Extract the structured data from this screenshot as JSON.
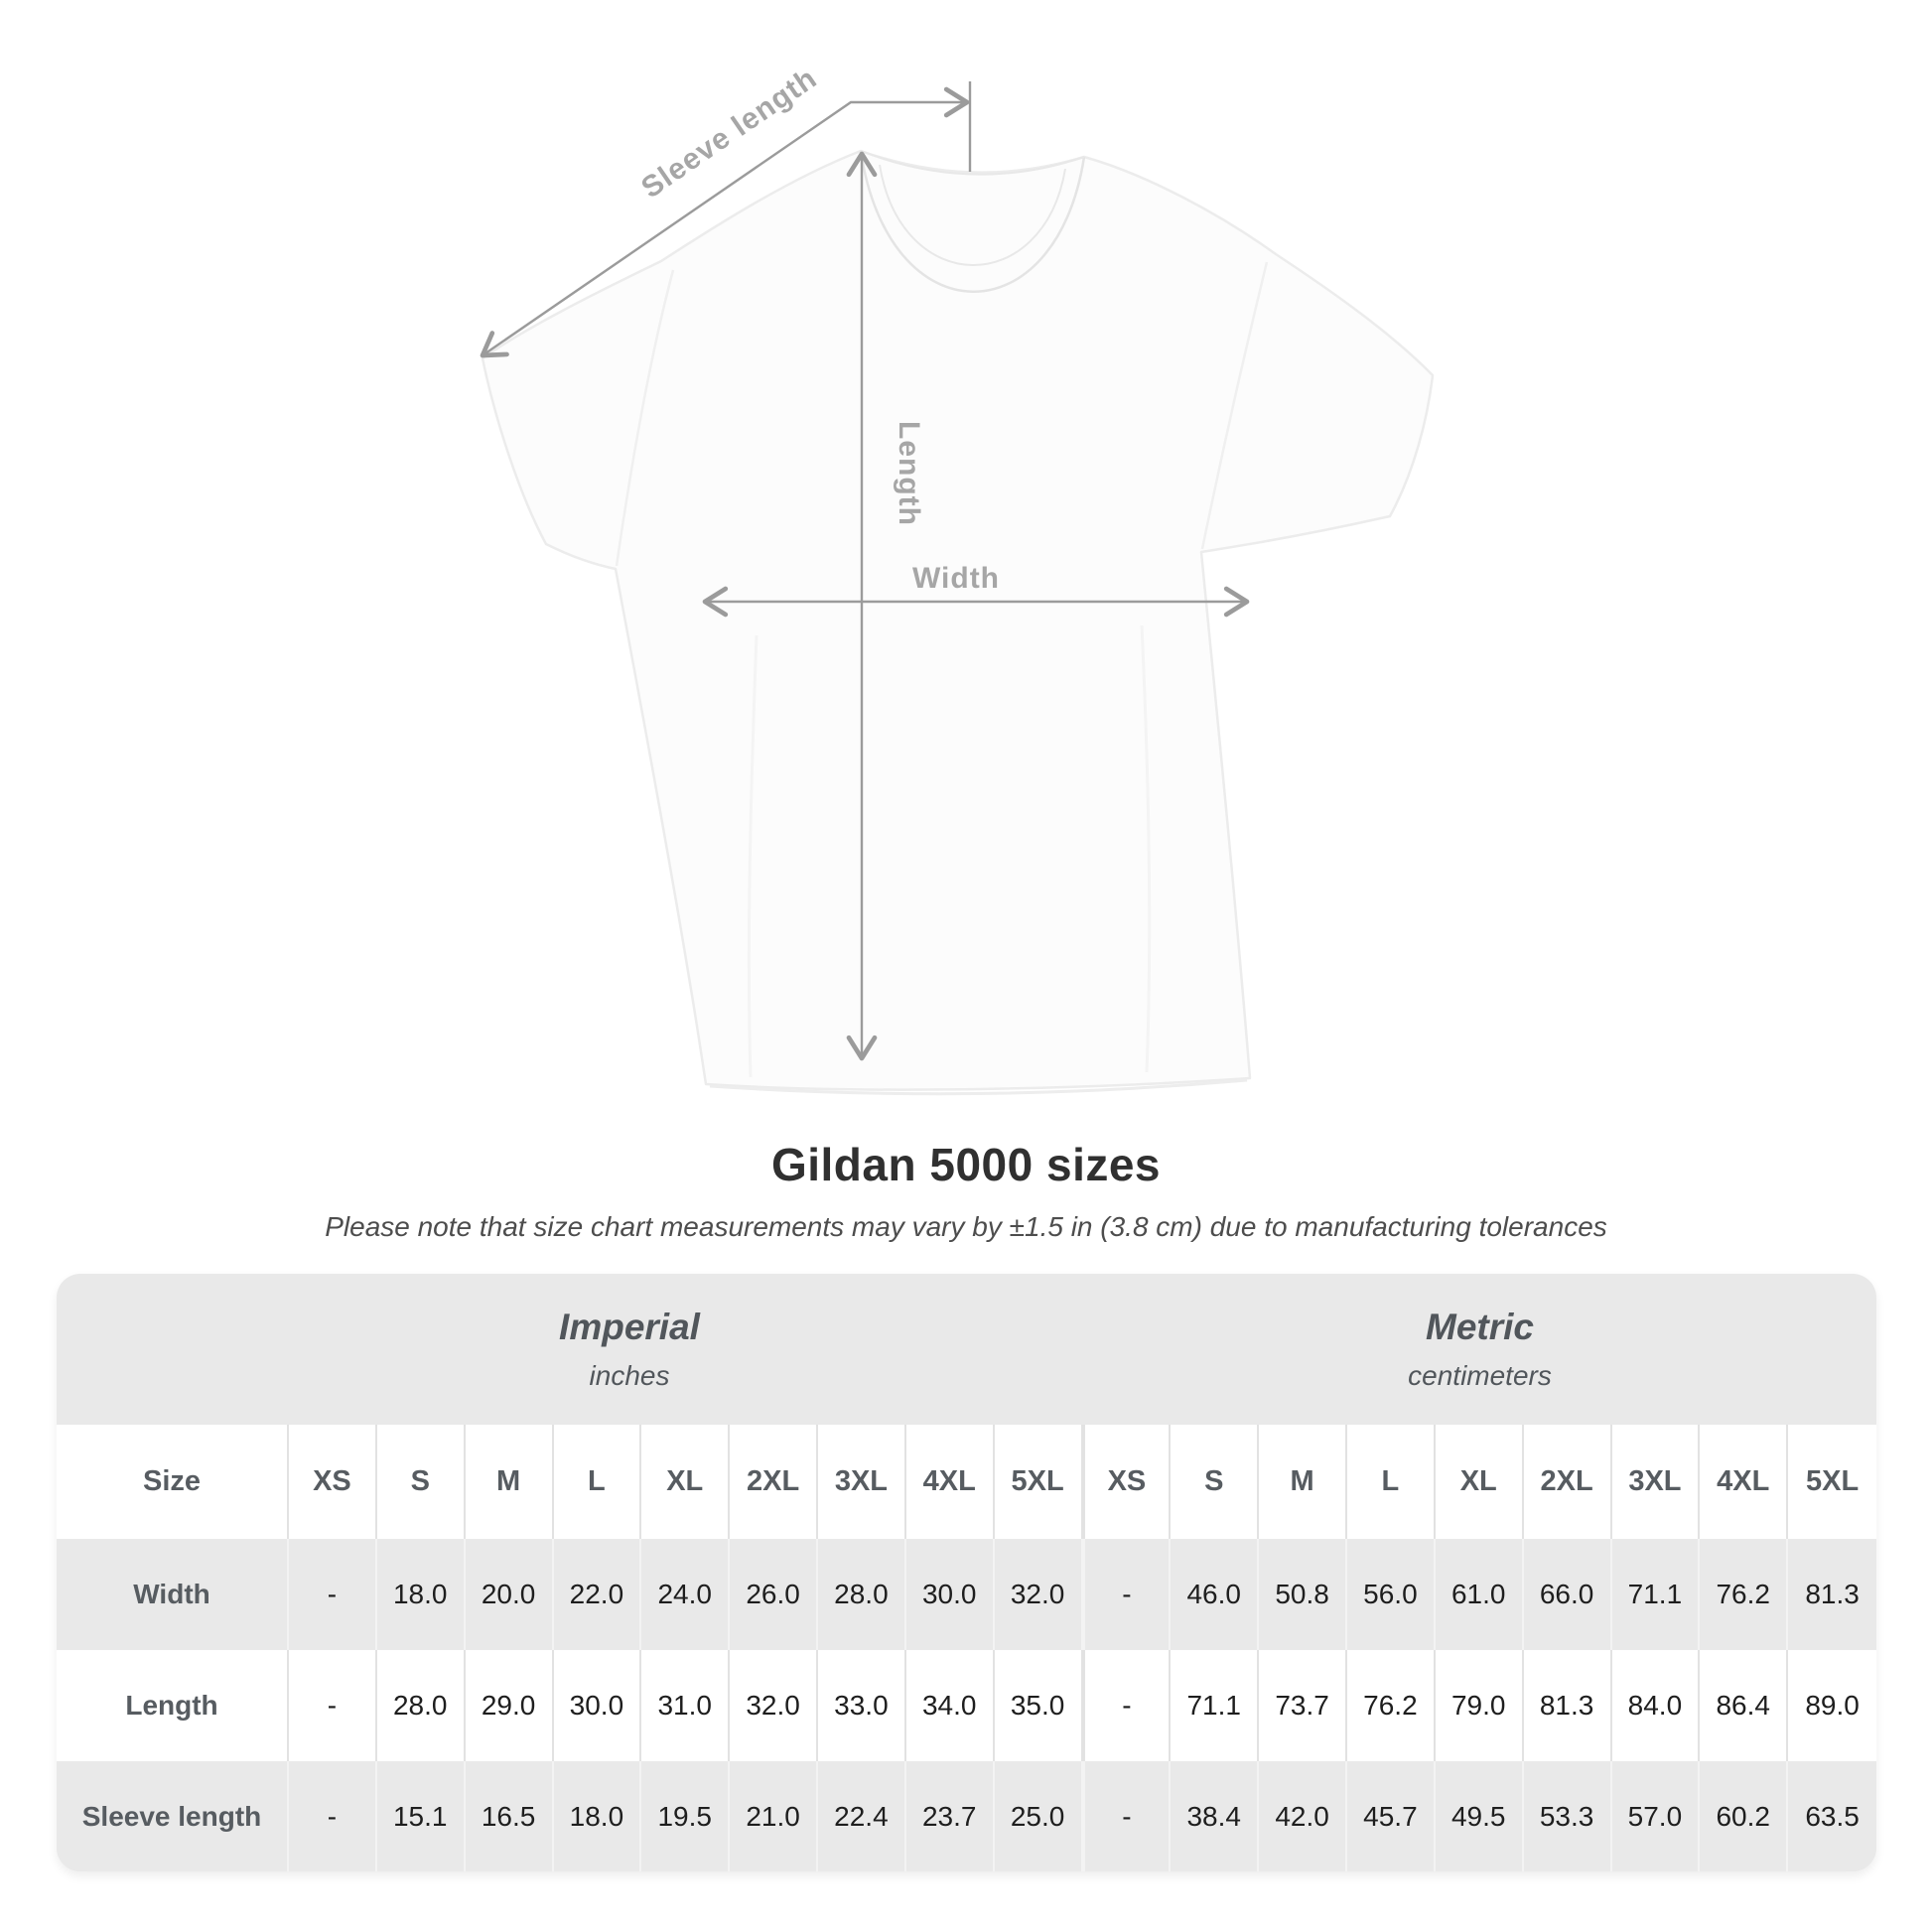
{
  "diagram": {
    "sleeve_length_label": "Sleeve length",
    "length_label": "Length",
    "width_label": "Width"
  },
  "header": {
    "title": "Gildan 5000 sizes",
    "subtitle": "Please note that size chart measurements may vary by ±1.5 in (3.8 cm) due to manufacturing tolerances"
  },
  "table": {
    "units": [
      {
        "system": "Imperial",
        "unit": "inches"
      },
      {
        "system": "Metric",
        "unit": "centimeters"
      }
    ],
    "size_column_header": "Size",
    "sizes": [
      "XS",
      "S",
      "M",
      "L",
      "XL",
      "2XL",
      "3XL",
      "4XL",
      "5XL"
    ],
    "rows": [
      {
        "label": "Width",
        "imperial": [
          "-",
          "18.0",
          "20.0",
          "22.0",
          "24.0",
          "26.0",
          "28.0",
          "30.0",
          "32.0"
        ],
        "metric": [
          "-",
          "46.0",
          "50.8",
          "56.0",
          "61.0",
          "66.0",
          "71.1",
          "76.2",
          "81.3"
        ]
      },
      {
        "label": "Length",
        "imperial": [
          "-",
          "28.0",
          "29.0",
          "30.0",
          "31.0",
          "32.0",
          "33.0",
          "34.0",
          "35.0"
        ],
        "metric": [
          "-",
          "71.1",
          "73.7",
          "76.2",
          "79.0",
          "81.3",
          "84.0",
          "86.4",
          "89.0"
        ]
      },
      {
        "label": "Sleeve length",
        "imperial": [
          "-",
          "15.1",
          "16.5",
          "18.0",
          "19.5",
          "21.0",
          "22.4",
          "23.7",
          "25.0"
        ],
        "metric": [
          "-",
          "38.4",
          "42.0",
          "45.7",
          "49.5",
          "53.3",
          "57.0",
          "60.2",
          "63.5"
        ]
      }
    ]
  },
  "colors": {
    "table_bg": "#e9e9e9",
    "annotation_line": "#9b9b9b",
    "annotation_text": "#a6a6a6",
    "header_text": "#51565b",
    "value_text": "#1e1e1e",
    "title_text": "#303030"
  }
}
